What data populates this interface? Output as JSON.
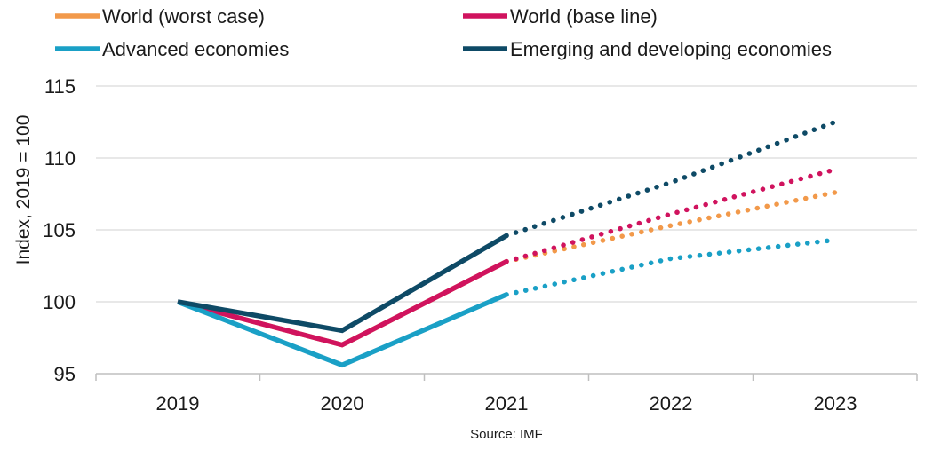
{
  "chart_data": {
    "type": "line",
    "ylabel": "Index, 2019 = 100",
    "xlabel": "",
    "source": "Source: IMF",
    "categories": [
      "2019",
      "2020",
      "2021",
      "2022",
      "2023"
    ],
    "yticks": [
      "95",
      "100",
      "105",
      "110",
      "115"
    ],
    "ylim": [
      95,
      115
    ],
    "grid": true,
    "legend_position": "top",
    "actual_through": "2021",
    "projection_style": "dotted",
    "series": [
      {
        "name": "World (worst case)",
        "color": "#F2994A",
        "values": [
          100,
          97.0,
          102.8,
          105.3,
          107.6
        ]
      },
      {
        "name": "World (base line)",
        "color": "#D0135E",
        "values": [
          100,
          97.0,
          102.8,
          106.1,
          109.2
        ]
      },
      {
        "name": "Advanced economies",
        "color": "#1AA0C6",
        "values": [
          100,
          95.6,
          100.5,
          103.0,
          104.3
        ]
      },
      {
        "name": "Emerging and developing economies",
        "color": "#0E4A66",
        "values": [
          100,
          98.0,
          104.6,
          108.3,
          112.5
        ]
      }
    ]
  }
}
